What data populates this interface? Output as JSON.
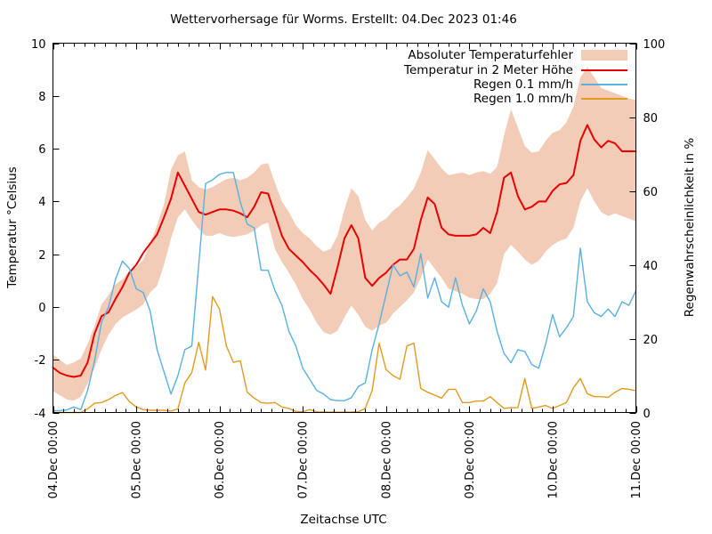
{
  "chart_data": {
    "type": "line",
    "title": "Wettervorhersage für Worms. Erstellt: 04.Dec 2023 01:46",
    "xlabel": "Zeitachse UTC",
    "ylabel": "Temperatur °Celsius",
    "y2label": "Regenwahrscheinlichkeit in %",
    "ylim": [
      -4,
      10
    ],
    "y2lim": [
      0,
      100
    ],
    "yticks": [
      10,
      8,
      6,
      4,
      2,
      0,
      -2,
      -4
    ],
    "y2ticks": [
      100,
      80,
      60,
      40,
      20,
      0
    ],
    "x_tick_labels": [
      "04.Dec 00:00",
      "05.Dec 00:00",
      "06.Dec 00:00",
      "07.Dec 00:00",
      "08.Dec 00:00",
      "09.Dec 00:00",
      "10.Dec 00:00",
      "11.Dec 00:00"
    ],
    "x_range_hours": [
      0,
      168
    ],
    "x_major_tick_hours": 24,
    "x_minor_tick_hours": 3,
    "x_step_hours": 2,
    "grid": false,
    "legend_position": "top-right-inside",
    "colors": {
      "background": "#ffffff",
      "axis": "#000000",
      "text": "#000000",
      "band": "#f2ccb7",
      "temperature": "#e60000",
      "rain01": "#59b0e1",
      "rain10": "#e09b20"
    },
    "series": [
      {
        "name": "Absoluter Temperaturfehler",
        "type": "band",
        "axis": "left",
        "upper": [
          -1.8,
          -2.0,
          -2.2,
          -2.1,
          -1.95,
          -1.4,
          -0.7,
          0.1,
          0.45,
          0.85,
          1.05,
          1.35,
          1.5,
          1.8,
          2.4,
          3.1,
          3.9,
          5.2,
          5.75,
          5.9,
          4.8,
          4.55,
          4.45,
          4.55,
          4.7,
          4.85,
          4.9,
          4.8,
          4.9,
          5.1,
          5.4,
          5.45,
          4.7,
          4.0,
          3.6,
          3.1,
          2.8,
          2.6,
          2.3,
          2.1,
          2.2,
          2.7,
          3.7,
          4.5,
          4.2,
          3.3,
          2.9,
          3.2,
          3.35,
          3.65,
          3.85,
          4.15,
          4.5,
          5.1,
          5.95,
          5.6,
          5.25,
          5.0,
          5.05,
          5.1,
          5.0,
          5.1,
          5.15,
          5.05,
          5.3,
          6.5,
          7.5,
          6.8,
          6.1,
          5.85,
          5.9,
          6.3,
          6.6,
          6.7,
          7.0,
          7.6,
          8.7,
          9.1,
          8.7,
          8.3,
          8.2,
          8.1,
          8.0,
          7.9,
          7.85
        ],
        "lower": [
          -3.2,
          -3.35,
          -3.5,
          -3.55,
          -3.4,
          -2.9,
          -2.3,
          -1.6,
          -1.05,
          -0.65,
          -0.4,
          -0.25,
          -0.1,
          0.1,
          0.55,
          0.8,
          1.6,
          2.6,
          3.4,
          3.7,
          3.3,
          2.95,
          2.7,
          2.7,
          2.8,
          2.7,
          2.65,
          2.7,
          2.75,
          2.9,
          3.1,
          3.2,
          2.2,
          1.7,
          1.3,
          0.85,
          0.3,
          -0.1,
          -0.6,
          -0.95,
          -1.05,
          -0.9,
          -0.4,
          0.05,
          -0.3,
          -0.75,
          -0.9,
          -0.7,
          -0.6,
          -0.25,
          0.0,
          0.25,
          0.55,
          1.1,
          1.8,
          1.45,
          1.1,
          0.7,
          0.6,
          0.5,
          0.35,
          0.3,
          0.3,
          0.5,
          0.9,
          2.0,
          2.35,
          2.1,
          1.8,
          1.6,
          1.75,
          2.1,
          2.35,
          2.5,
          2.6,
          3.0,
          4.0,
          4.5,
          4.0,
          3.6,
          3.45,
          3.55,
          3.45,
          3.35,
          3.25
        ]
      },
      {
        "name": "Temperatur in 2 Meter Höhe",
        "type": "line",
        "axis": "left",
        "values": [
          -2.3,
          -2.5,
          -2.6,
          -2.65,
          -2.6,
          -2.1,
          -1.0,
          -0.35,
          -0.2,
          0.3,
          0.75,
          1.3,
          1.6,
          2.05,
          2.4,
          2.75,
          3.4,
          4.1,
          5.1,
          4.6,
          4.1,
          3.6,
          3.5,
          3.6,
          3.7,
          3.7,
          3.65,
          3.55,
          3.4,
          3.8,
          4.35,
          4.3,
          3.5,
          2.7,
          2.2,
          1.95,
          1.7,
          1.4,
          1.15,
          0.85,
          0.5,
          1.5,
          2.6,
          3.1,
          2.6,
          1.1,
          0.8,
          1.1,
          1.3,
          1.6,
          1.8,
          1.8,
          2.2,
          3.3,
          4.15,
          3.9,
          3.0,
          2.75,
          2.7,
          2.7,
          2.7,
          2.75,
          3.0,
          2.8,
          3.6,
          4.9,
          5.1,
          4.2,
          3.7,
          3.8,
          4.0,
          4.0,
          4.4,
          4.65,
          4.7,
          5.0,
          6.3,
          6.9,
          6.35,
          6.05,
          6.3,
          6.2,
          5.9,
          5.9,
          5.9
        ]
      },
      {
        "name": "Regen 0.1 mm/h",
        "type": "line",
        "axis": "right",
        "values": [
          0.5,
          0.5,
          0.7,
          1.5,
          0.8,
          6,
          14,
          24.5,
          28.5,
          36,
          41,
          39,
          33.5,
          32.5,
          27.5,
          17,
          11,
          5,
          10,
          17,
          18,
          40,
          62,
          63,
          64.5,
          65,
          65,
          57,
          51,
          50,
          38.5,
          38.5,
          33,
          29,
          22,
          18,
          12,
          9,
          6,
          5,
          3.5,
          3.2,
          3.2,
          4,
          7,
          8,
          17,
          24,
          32,
          40,
          37,
          38,
          34,
          43,
          31,
          36.5,
          30,
          28.5,
          36.5,
          29,
          24,
          27.5,
          33.5,
          30,
          22,
          16,
          13.5,
          17,
          16.5,
          13,
          12,
          18.5,
          26.5,
          20.5,
          23,
          26,
          44.5,
          30,
          27,
          26,
          28,
          26,
          30,
          29,
          33
        ]
      },
      {
        "name": "Regen 1.0 mm/h",
        "type": "line",
        "axis": "right",
        "values": [
          0,
          0,
          0,
          0,
          0,
          1,
          2.5,
          2.7,
          3.5,
          4.6,
          5.4,
          3,
          1.5,
          0.8,
          0.6,
          0.6,
          0.6,
          0.4,
          1,
          8,
          10.8,
          19,
          11.5,
          31.4,
          28,
          18,
          13.6,
          14,
          5.5,
          3.9,
          2.7,
          2.5,
          2.7,
          1.5,
          1.1,
          0.3,
          0.2,
          0.8,
          0.2,
          0.1,
          0.1,
          0.1,
          0.1,
          0.1,
          0.2,
          1.1,
          6,
          18.8,
          11.6,
          10,
          9,
          18,
          18.8,
          6.5,
          5.5,
          4.7,
          3.9,
          6.3,
          6.3,
          2.7,
          2.7,
          3.1,
          3.1,
          4.3,
          2.7,
          1.1,
          1.3,
          1.3,
          9.2,
          1.1,
          1.5,
          1.9,
          1.1,
          1.9,
          2.7,
          6.7,
          9.2,
          5.1,
          4.3,
          4.3,
          4.1,
          5.5,
          6.5,
          6.3,
          5.9
        ]
      }
    ]
  }
}
